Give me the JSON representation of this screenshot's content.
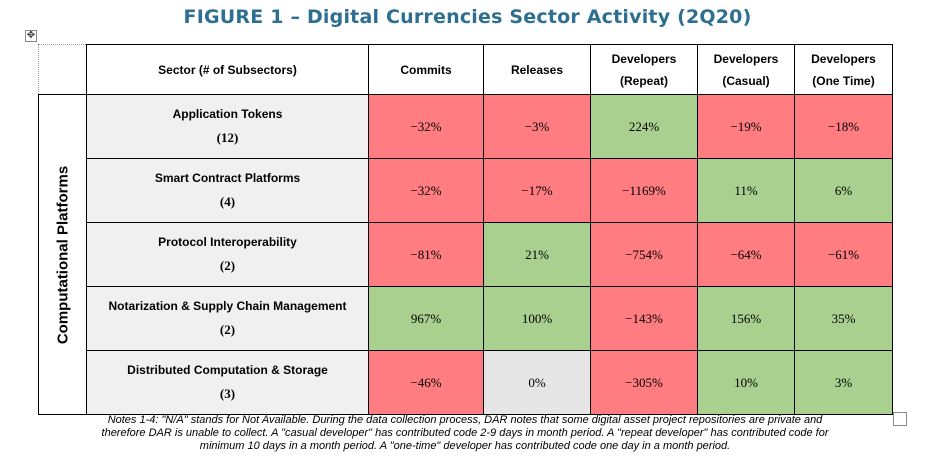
{
  "title": "FIGURE 1 – Digital Currencies Sector Activity (2Q20)",
  "side_label": "Computational Platforms",
  "headers": {
    "sector": "Sector (# of Subsectors)",
    "commits": "Commits",
    "releases": "Releases",
    "dev_repeat": [
      "Developers",
      "(Repeat)"
    ],
    "dev_casual": [
      "Developers",
      "(Casual)"
    ],
    "dev_one_time": [
      "Developers",
      "(One Time)"
    ]
  },
  "rows": [
    {
      "name": "Application Tokens",
      "count": "(12)",
      "commits": "−32%",
      "releases": "−3%",
      "dev_repeat": "224%",
      "dev_casual": "−19%",
      "dev_one_time": "−18%"
    },
    {
      "name": "Smart Contract Platforms",
      "count": "(4)",
      "commits": "−32%",
      "releases": "−17%",
      "dev_repeat": "−1169%",
      "dev_casual": "11%",
      "dev_one_time": "6%"
    },
    {
      "name": "Protocol Interoperability",
      "count": "(2)",
      "commits": "−81%",
      "releases": "21%",
      "dev_repeat": "−754%",
      "dev_casual": "−64%",
      "dev_one_time": "−61%"
    },
    {
      "name": "Notarization & Supply Chain Management",
      "count": "(2)",
      "commits": "967%",
      "releases": "100%",
      "dev_repeat": "−143%",
      "dev_casual": "156%",
      "dev_one_time": "35%"
    },
    {
      "name": "Distributed Computation & Storage",
      "count": "(3)",
      "commits": "−46%",
      "releases": "0%",
      "dev_repeat": "−305%",
      "dev_casual": "10%",
      "dev_one_time": "3%"
    }
  ],
  "colors": {
    "title": "#2e6f91",
    "negative": "#ff7c80",
    "positive": "#a9d08e",
    "neutral": "#e7e6e6",
    "sector_bg": "#f0f0f0"
  },
  "notes": [
    "Notes 1-4: \"N/A\" stands for Not Available. During the data collection process, DAR notes that some digital asset project repositories are private and",
    "therefore DAR is unable to collect.  A \"casual developer\" has contributed code 2-9 days in month period. A \"repeat developer\" has contributed code for",
    "minimum 10 days in a month period. A \"one-time\" developer has contributed code one day in a month period."
  ],
  "icons": {
    "move_handle": "move-arrows-icon",
    "resize_handle": "resize-handle-icon"
  }
}
